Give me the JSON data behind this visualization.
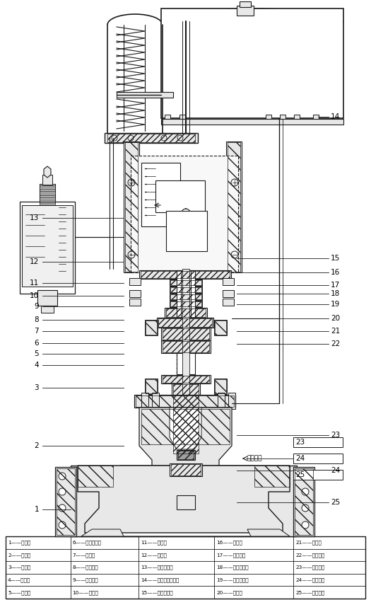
{
  "bg_color": "#ffffff",
  "line_color": "#1a1a1a",
  "table_data": [
    [
      "1——阀体；",
      "6——波纹管座；",
      "11——螺柱；",
      "16——垫片；",
      "21——螺柱；"
    ],
    [
      "2——阀盖；",
      "7——阀盖；",
      "12——螺母；",
      "17——填料母；",
      "22——导向套；"
    ],
    [
      "3——阀瓣；",
      "8——波纹管；",
      "13——气动附件；",
      "18——填料压板；",
      "23——止退垫；"
    ],
    [
      "4——阀杆；",
      "9——填料函；",
      "14——气动执行机构；",
      "19——填料压套；",
      "24——对开环；"
    ],
    [
      "5——垫片；",
      "10——填料；",
      "15——限位开关；",
      "20——螺母；",
      "25——阀盖盖；"
    ]
  ],
  "left_labels": [
    "13",
    "12",
    "11",
    "10",
    "9",
    "8",
    "7",
    "6",
    "5",
    "4",
    "3",
    "2",
    "1"
  ],
  "right_labels": [
    "14",
    "15",
    "16",
    "17",
    "18",
    "19",
    "20",
    "21",
    "22",
    "23",
    "24",
    "25"
  ],
  "arrow_label": "介质流向"
}
